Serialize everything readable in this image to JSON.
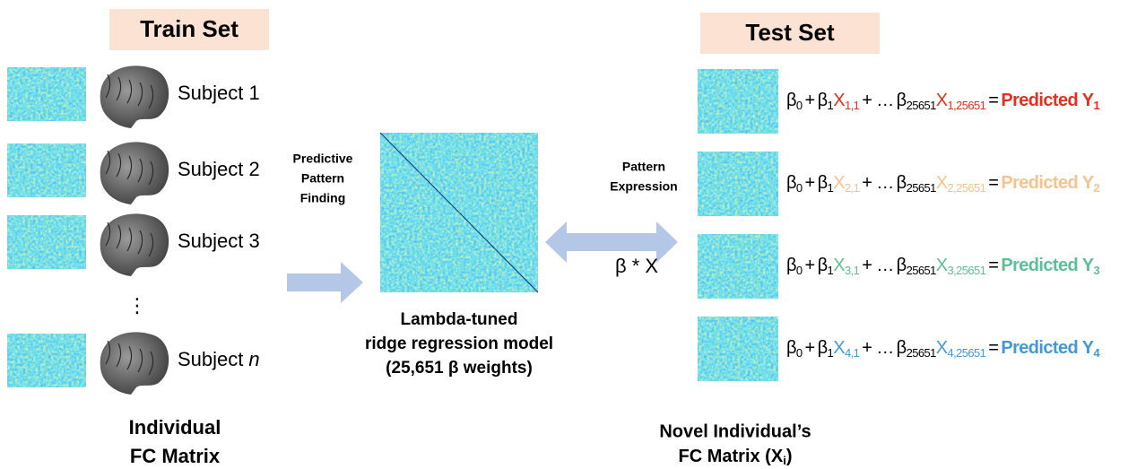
{
  "train": {
    "title": "Train Set",
    "subjects": [
      "Subject 1",
      "Subject 2",
      "Subject 3"
    ],
    "ellipsis": "⋮",
    "last_subject": {
      "word": "Subject",
      "var": "n"
    },
    "caption": [
      "Individual",
      "FC Matrix"
    ]
  },
  "finding": [
    "Predictive",
    "Pattern",
    "Finding"
  ],
  "model": [
    "Lambda-tuned",
    "ridge regression model",
    "(25,651 β weights)"
  ],
  "expression": {
    "label": [
      "Pattern",
      "Expression"
    ],
    "formula": "β * X"
  },
  "test": {
    "title": "Test Set",
    "equation": {
      "beta": "β",
      "sub0": "0",
      "sub1": "1",
      "plus": "+",
      "dots": "+ …",
      "subn": "25651",
      "x": "X",
      "equals": "=",
      "predicted": "Predicted Y"
    },
    "rows": [
      {
        "x_first": "1,1",
        "x_last": "1,25651",
        "y": "1",
        "color": "#e2311d"
      },
      {
        "x_first": "2,1",
        "x_last": "2,25651",
        "y": "2",
        "color": "#f6c38e"
      },
      {
        "x_first": "3,1",
        "x_last": "3,25651",
        "y": "3",
        "color": "#5cbf98"
      },
      {
        "x_first": "4,1",
        "x_last": "4,25651",
        "y": "4",
        "color": "#4299d6"
      }
    ],
    "caption": {
      "line1": "Novel Individual’s",
      "line2": "FC Matrix (X",
      "sub": "i",
      "close": ")"
    }
  }
}
